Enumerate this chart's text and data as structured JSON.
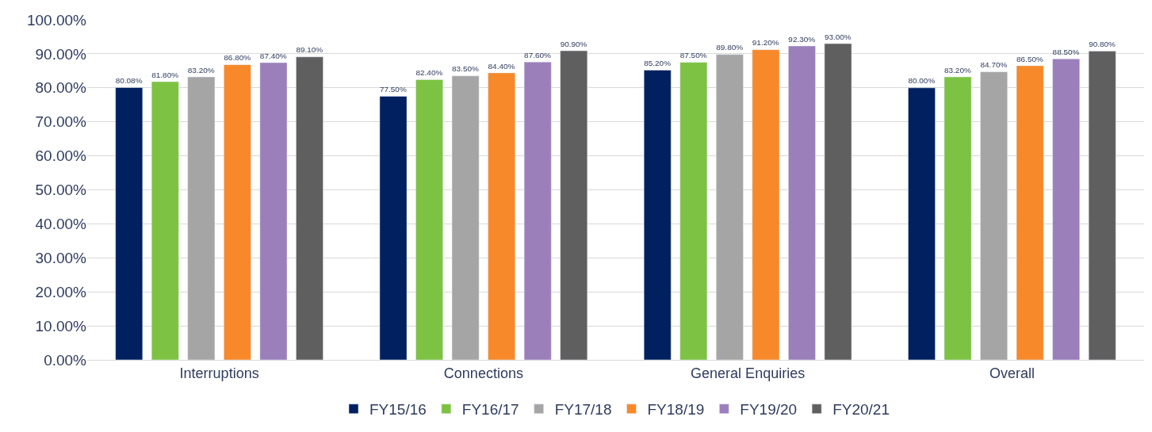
{
  "chart_data": {
    "type": "bar",
    "categories": [
      "Interruptions",
      "Connections",
      "General Enquiries",
      "Overall"
    ],
    "series": [
      {
        "name": "FY15/16",
        "color": "#002060",
        "values": [
          80.08,
          77.5,
          85.2,
          80.0
        ],
        "value_labels": [
          "80.08%",
          "77.50%",
          "85.20%",
          "80.00%"
        ]
      },
      {
        "name": "FY16/17",
        "color": "#7dc242",
        "values": [
          81.8,
          82.4,
          87.5,
          83.2
        ],
        "value_labels": [
          "81.80%",
          "82.40%",
          "87.50%",
          "83.20%"
        ]
      },
      {
        "name": "FY17/18",
        "color": "#a5a5a5",
        "values": [
          83.2,
          83.5,
          89.8,
          84.7
        ],
        "value_labels": [
          "83.20%",
          "83.50%",
          "89.80%",
          "84.70%"
        ]
      },
      {
        "name": "FY18/19",
        "color": "#f7892a",
        "values": [
          86.8,
          84.4,
          91.2,
          86.5
        ],
        "value_labels": [
          "86.80%",
          "84.40%",
          "91.20%",
          "86.50%"
        ]
      },
      {
        "name": "FY19/20",
        "color": "#9b7fbb",
        "values": [
          87.4,
          87.6,
          92.3,
          88.5
        ],
        "value_labels": [
          "87.40%",
          "87.60%",
          "92.30%",
          "88.50%"
        ]
      },
      {
        "name": "FY20/21",
        "color": "#5f5f60",
        "values": [
          89.1,
          90.9,
          93.0,
          90.8
        ],
        "value_labels": [
          "89.10%",
          "90.90%",
          "93.00%",
          "90.80%"
        ]
      }
    ],
    "ylim": [
      0,
      100
    ],
    "yticks": [
      {
        "value": 0,
        "label": "0.00%"
      },
      {
        "value": 10,
        "label": "10.00%"
      },
      {
        "value": 20,
        "label": "20.00%"
      },
      {
        "value": 30,
        "label": "30.00%"
      },
      {
        "value": 40,
        "label": "40.00%"
      },
      {
        "value": 50,
        "label": "50.00%"
      },
      {
        "value": 60,
        "label": "60.00%"
      },
      {
        "value": 70,
        "label": "70.00%"
      },
      {
        "value": 80,
        "label": "80.00%"
      },
      {
        "value": 90,
        "label": "90.00%"
      },
      {
        "value": 100,
        "label": "100.00%"
      }
    ],
    "grid": "y",
    "legend": "bottom"
  }
}
